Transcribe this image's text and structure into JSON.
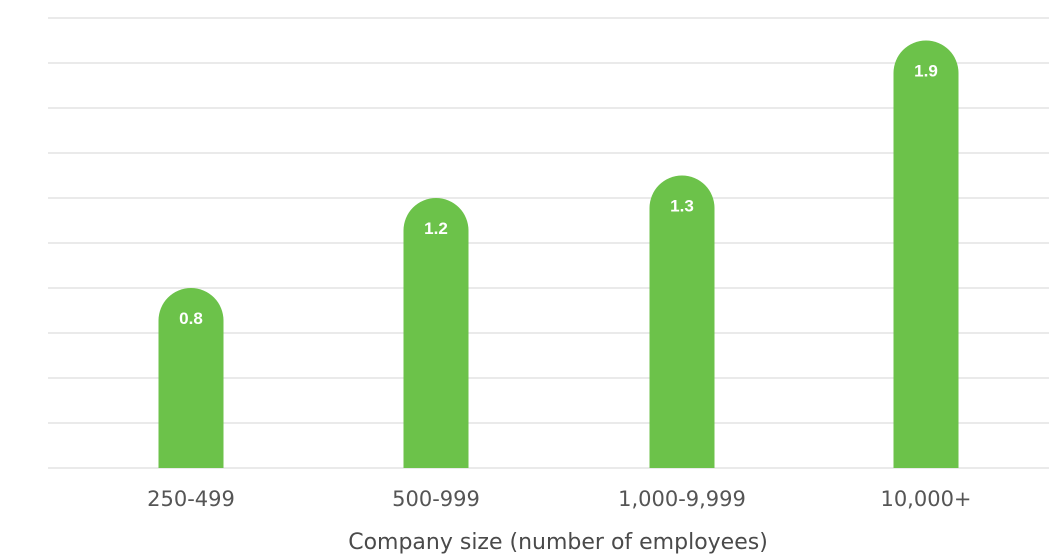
{
  "chart_data": {
    "type": "bar",
    "categories": [
      "250-499",
      "500-999",
      "1,000-9,999",
      "10,000+"
    ],
    "values": [
      0.8,
      1.2,
      1.3,
      1.9
    ],
    "value_labels": [
      "0.8",
      "1.2",
      "1.3",
      "1.9"
    ],
    "title": "",
    "xlabel": "Company size (number of employees)",
    "ylabel": "",
    "ylim": [
      0,
      2.0
    ],
    "grid": true,
    "bar_color": "#6cc24a"
  }
}
